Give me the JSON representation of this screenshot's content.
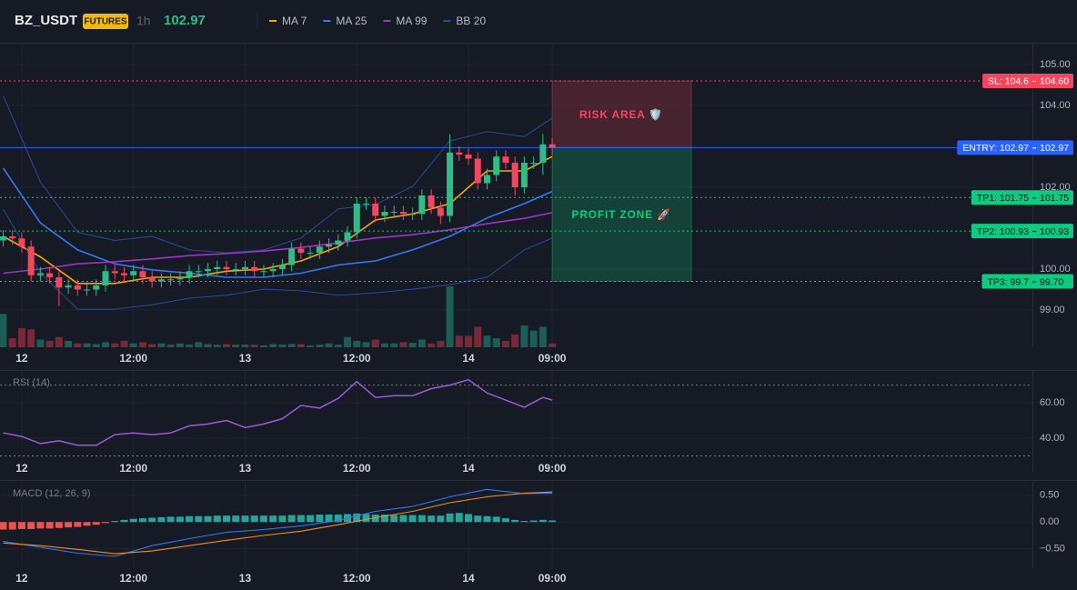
{
  "chart_data": [
    {
      "type": "candlestick",
      "title": "BZ_USDT",
      "badge": "FUTURES",
      "interval": "1h",
      "last_price": 102.97,
      "xlim": [
        -0.34,
        110.6
      ],
      "xticks": [
        {
          "value": 2,
          "label": "12"
        },
        {
          "value": 14,
          "label": "12:00"
        },
        {
          "value": 26,
          "label": "13"
        },
        {
          "value": 38,
          "label": "12:00"
        },
        {
          "value": 50,
          "label": "14"
        },
        {
          "value": 59,
          "label": "09:00"
        }
      ],
      "ylim": [
        98.09,
        105.51
      ],
      "yticks": [
        {
          "value": 99,
          "label": "99.00"
        },
        {
          "value": 100,
          "label": "100.00"
        },
        {
          "value": 102,
          "label": "102.00"
        },
        {
          "value": 104,
          "label": "104.00"
        },
        {
          "value": 105,
          "label": "105.00"
        }
      ],
      "grid": true,
      "up_color": "#2ebd85",
      "down_color": "#f6465d",
      "volume_up_color": "#1b5e56",
      "volume_down_color": "#7a2836",
      "x": [
        0,
        1,
        2,
        3,
        4,
        5,
        6,
        7,
        8,
        9,
        10,
        11,
        12,
        13,
        14,
        15,
        16,
        17,
        18,
        19,
        20,
        21,
        22,
        23,
        24,
        25,
        26,
        27,
        28,
        29,
        30,
        31,
        32,
        33,
        34,
        35,
        36,
        37,
        38,
        39,
        40,
        41,
        42,
        43,
        44,
        45,
        46,
        47,
        48,
        49,
        50,
        51,
        52,
        53,
        54,
        55,
        56,
        57,
        58,
        59
      ],
      "open": [
        100.7,
        100.8,
        100.75,
        100.55,
        99.85,
        99.9,
        99.8,
        99.55,
        99.6,
        99.5,
        99.5,
        99.6,
        99.95,
        99.9,
        99.85,
        99.95,
        99.8,
        99.7,
        99.75,
        99.75,
        99.8,
        99.95,
        99.95,
        100.0,
        100.05,
        100.0,
        100.0,
        100.05,
        99.95,
        99.95,
        100.0,
        100.1,
        100.5,
        100.4,
        100.4,
        100.55,
        100.6,
        100.7,
        100.9,
        101.6,
        101.6,
        101.3,
        101.4,
        101.4,
        101.35,
        101.35,
        101.8,
        101.5,
        101.3,
        102.85,
        102.8,
        102.7,
        102.1,
        102.3,
        102.75,
        102.6,
        102.0,
        102.6,
        102.6,
        103.05
      ],
      "high": [
        100.95,
        100.95,
        100.9,
        100.7,
        100.05,
        100.05,
        99.95,
        99.75,
        99.75,
        99.65,
        99.75,
        100.1,
        100.1,
        100.05,
        100.1,
        100.1,
        99.95,
        99.9,
        99.9,
        99.95,
        100.1,
        100.1,
        100.15,
        100.2,
        100.2,
        100.15,
        100.2,
        100.2,
        100.1,
        100.15,
        100.25,
        100.65,
        100.65,
        100.55,
        100.7,
        100.75,
        100.85,
        101.05,
        101.75,
        101.75,
        101.75,
        101.55,
        101.55,
        101.55,
        101.5,
        101.95,
        101.95,
        101.65,
        103.3,
        103.0,
        102.95,
        102.85,
        102.45,
        102.9,
        102.9,
        102.75,
        102.75,
        102.75,
        103.3,
        103.2
      ],
      "low": [
        100.55,
        100.6,
        100.4,
        99.7,
        99.7,
        99.65,
        99.1,
        99.4,
        99.35,
        99.35,
        99.35,
        99.45,
        99.75,
        99.7,
        99.7,
        99.65,
        99.55,
        99.55,
        99.6,
        99.6,
        99.65,
        99.8,
        99.8,
        99.85,
        99.85,
        99.85,
        99.85,
        99.8,
        99.8,
        99.8,
        99.85,
        99.95,
        100.25,
        100.25,
        100.25,
        100.4,
        100.45,
        100.55,
        100.75,
        101.45,
        101.15,
        101.15,
        101.25,
        101.2,
        101.2,
        101.2,
        101.35,
        101.1,
        101.15,
        102.65,
        102.55,
        101.95,
        101.95,
        102.15,
        102.45,
        101.8,
        101.85,
        102.45,
        102.3,
        102.8
      ],
      "close": [
        100.8,
        100.75,
        100.55,
        99.85,
        99.9,
        99.8,
        99.55,
        99.6,
        99.5,
        99.5,
        99.6,
        99.95,
        99.9,
        99.85,
        99.95,
        99.8,
        99.7,
        99.75,
        99.75,
        99.8,
        99.95,
        99.95,
        100.0,
        100.05,
        100.0,
        100.0,
        100.05,
        99.95,
        99.95,
        100.0,
        100.1,
        100.5,
        100.4,
        100.4,
        100.55,
        100.6,
        100.7,
        100.9,
        101.6,
        101.6,
        101.3,
        101.4,
        101.4,
        101.35,
        101.35,
        101.8,
        101.5,
        101.3,
        102.85,
        102.8,
        102.7,
        102.1,
        102.3,
        102.75,
        102.6,
        102.0,
        102.6,
        102.6,
        103.05,
        102.97
      ],
      "volume": [
        52,
        14,
        30,
        28,
        12,
        10,
        16,
        10,
        6,
        6,
        5,
        8,
        6,
        10,
        6,
        8,
        5,
        6,
        4,
        6,
        4,
        8,
        5,
        4,
        5,
        4,
        4,
        4,
        3,
        5,
        4,
        5,
        5,
        3,
        4,
        6,
        4,
        16,
        10,
        8,
        12,
        6,
        6,
        8,
        7,
        12,
        6,
        10,
        95,
        18,
        18,
        32,
        18,
        14,
        10,
        20,
        34,
        26,
        32,
        6
      ],
      "overlays": [
        {
          "name": "MA 7",
          "color": "#f7a600",
          "x": [
            0,
            4,
            8,
            12,
            16,
            20,
            24,
            28,
            32,
            36,
            40,
            44,
            48,
            52,
            56,
            59
          ],
          "values": [
            100.8,
            100.3,
            99.65,
            99.65,
            99.8,
            99.8,
            99.95,
            100.0,
            100.2,
            100.55,
            101.2,
            101.35,
            101.6,
            102.4,
            102.4,
            102.75
          ]
        },
        {
          "name": "MA 25",
          "color": "#3179f5",
          "x": [
            0,
            4,
            8,
            12,
            16,
            20,
            24,
            28,
            32,
            36,
            40,
            44,
            48,
            52,
            56,
            59
          ],
          "values": [
            102.47,
            101.13,
            100.47,
            100.13,
            99.98,
            99.9,
            99.8,
            99.8,
            99.9,
            100.1,
            100.2,
            100.47,
            100.8,
            101.25,
            101.6,
            101.9
          ]
        },
        {
          "name": "MA 99",
          "color": "#a033c4",
          "x": [
            0,
            4,
            8,
            12,
            16,
            20,
            24,
            28,
            32,
            36,
            40,
            44,
            48,
            52,
            56,
            59
          ],
          "values": [
            99.9,
            100.0,
            100.13,
            100.18,
            100.25,
            100.33,
            100.38,
            100.44,
            100.53,
            100.64,
            100.76,
            100.84,
            100.96,
            101.11,
            101.24,
            101.38
          ]
        },
        {
          "name": "BB 20",
          "color": "#2a4a9a",
          "x": [
            0,
            4,
            8,
            12,
            16,
            20,
            24,
            28,
            32,
            36,
            40,
            44,
            48,
            52,
            56,
            59
          ],
          "values": [
            104.24,
            102.13,
            100.9,
            100.7,
            100.8,
            100.47,
            100.4,
            100.47,
            100.76,
            101.47,
            101.58,
            102.02,
            103.13,
            103.36,
            103.24,
            103.69
          ],
          "lower": [
            101.47,
            99.91,
            99.02,
            99.02,
            99.13,
            99.29,
            99.36,
            99.51,
            99.47,
            99.36,
            99.42,
            99.51,
            99.62,
            99.8,
            100.47,
            100.76
          ]
        }
      ],
      "levels": [
        {
          "name": "SL: 104.6",
          "value": 104.6,
          "value_label": "104.60",
          "color": "#f6465d",
          "text_color": "#ffffff",
          "line_style": "dotted"
        },
        {
          "name": "ENTRY: 102.97",
          "value": 102.97,
          "value_label": "102.97",
          "color": "#2962ff",
          "text_color": "#ffffff",
          "line_style": "solid"
        },
        {
          "name": "TP1: 101.75",
          "value": 101.75,
          "value_label": "101.75",
          "color": "#0ecb81",
          "text_color": "#0b1a12",
          "line_style": "dotted"
        },
        {
          "name": "TP2: 100.93",
          "value": 100.93,
          "value_label": "100.93",
          "color": "#0ecb81",
          "text_color": "#0b1a12",
          "line_style": "dotted"
        },
        {
          "name": "TP3: 99.7",
          "value": 99.7,
          "value_label": "99.70",
          "color": "#0ecb81",
          "text_color": "#0b1a12",
          "line_style": "dotted"
        }
      ],
      "zones": [
        {
          "label": "RISK AREA 🛡️",
          "from": 104.6,
          "to": 102.97,
          "color": "#f6465d"
        },
        {
          "label": "PROFIT ZONE 🚀",
          "from": 102.97,
          "to": 99.7,
          "color": "#0ecb81"
        }
      ]
    },
    {
      "type": "line",
      "title": "RSI (14)",
      "xlim": [
        -0.34,
        110.6
      ],
      "xticks": [
        {
          "value": 2,
          "label": "12"
        },
        {
          "value": 14,
          "label": "12:00"
        },
        {
          "value": 26,
          "label": "13"
        },
        {
          "value": 38,
          "label": "12:00"
        },
        {
          "value": 50,
          "label": "14"
        },
        {
          "value": 59,
          "label": "09:00"
        }
      ],
      "ylim": [
        20.5,
        78
      ],
      "yticks": [
        {
          "value": 40,
          "label": "40.00"
        },
        {
          "value": 60,
          "label": "60.00"
        }
      ],
      "grid": true,
      "bands": [
        30,
        70
      ],
      "series": [
        {
          "color": "#9a5cd6",
          "x": [
            0,
            2,
            4,
            6,
            8,
            10,
            12,
            14,
            16,
            18,
            20,
            22,
            24,
            26,
            28,
            30,
            32,
            34,
            36,
            38,
            40,
            42,
            44,
            46,
            48,
            50,
            52,
            54,
            56,
            58,
            59
          ],
          "values": [
            43,
            41,
            37,
            38.5,
            36,
            36,
            42,
            43,
            42,
            43,
            47,
            48,
            50,
            46,
            48,
            51,
            58.5,
            57,
            62.5,
            72,
            63,
            64,
            64,
            68,
            70,
            73,
            65.5,
            61.5,
            57.5,
            63,
            61.5
          ]
        }
      ]
    },
    {
      "type": "combo",
      "title": "MACD (12, 26, 9)",
      "xlim": [
        -0.34,
        110.6
      ],
      "xticks": [
        {
          "value": 2,
          "label": "12"
        },
        {
          "value": 14,
          "label": "12:00"
        },
        {
          "value": 26,
          "label": "13"
        },
        {
          "value": 38,
          "label": "12:00"
        },
        {
          "value": 50,
          "label": "14"
        },
        {
          "value": 59,
          "label": "09:00"
        }
      ],
      "ylim": [
        -0.86,
        0.75
      ],
      "yticks": [
        {
          "value": -0.5,
          "label": "−0.50"
        },
        {
          "value": 0,
          "label": "0.00"
        },
        {
          "value": 0.5,
          "label": "0.50"
        }
      ],
      "grid": true,
      "positive_color": "#26a69a",
      "negative_color": "#ef5350",
      "x": [
        0,
        1,
        2,
        3,
        4,
        5,
        6,
        7,
        8,
        9,
        10,
        11,
        12,
        13,
        14,
        15,
        16,
        17,
        18,
        19,
        20,
        21,
        22,
        23,
        24,
        25,
        26,
        27,
        28,
        29,
        30,
        31,
        32,
        33,
        34,
        35,
        36,
        37,
        38,
        39,
        40,
        41,
        42,
        43,
        44,
        45,
        46,
        47,
        48,
        49,
        50,
        51,
        52,
        53,
        54,
        55,
        56,
        57,
        58,
        59
      ],
      "bars": [
        -0.14,
        -0.14,
        -0.13,
        -0.13,
        -0.12,
        -0.12,
        -0.11,
        -0.1,
        -0.09,
        -0.07,
        -0.05,
        -0.02,
        0.02,
        0.04,
        0.06,
        0.07,
        0.08,
        0.09,
        0.1,
        0.1,
        0.11,
        0.11,
        0.11,
        0.12,
        0.12,
        0.12,
        0.12,
        0.12,
        0.12,
        0.12,
        0.12,
        0.13,
        0.13,
        0.13,
        0.14,
        0.14,
        0.14,
        0.15,
        0.16,
        0.15,
        0.14,
        0.14,
        0.13,
        0.13,
        0.13,
        0.13,
        0.12,
        0.12,
        0.16,
        0.17,
        0.15,
        0.12,
        0.11,
        0.1,
        0.07,
        0.04,
        0.02,
        0.03,
        0.04,
        0.03
      ],
      "series": [
        {
          "color": "#3179f5",
          "x": [
            0,
            4,
            8,
            12,
            16,
            20,
            24,
            28,
            32,
            36,
            40,
            44,
            48,
            52,
            56,
            59
          ],
          "values": [
            -0.36,
            -0.47,
            -0.58,
            -0.64,
            -0.44,
            -0.31,
            -0.19,
            -0.14,
            -0.07,
            0.03,
            0.2,
            0.29,
            0.47,
            0.61,
            0.53,
            0.54
          ]
        },
        {
          "color": "#f48c1a",
          "x": [
            0,
            4,
            8,
            12,
            16,
            20,
            24,
            28,
            32,
            36,
            40,
            44,
            48,
            52,
            56,
            59
          ],
          "values": [
            -0.39,
            -0.44,
            -0.51,
            -0.59,
            -0.54,
            -0.44,
            -0.34,
            -0.25,
            -0.17,
            -0.05,
            0.08,
            0.2,
            0.36,
            0.47,
            0.54,
            0.56
          ]
        }
      ]
    }
  ]
}
